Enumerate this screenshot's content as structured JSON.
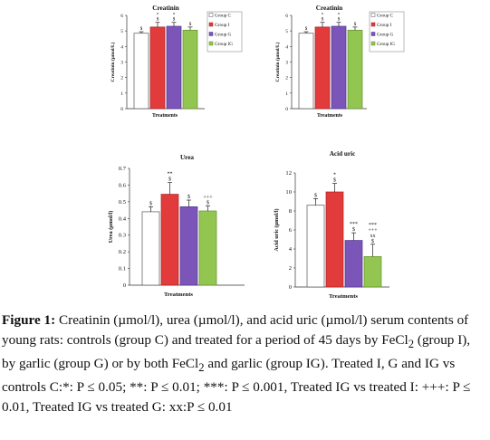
{
  "colors": {
    "group_c": "#ffffff",
    "group_i": "#e23b3b",
    "group_g": "#7b56b8",
    "group_ig": "#93c650"
  },
  "chart_data": [
    {
      "type": "bar",
      "title": "Creatinin",
      "xlabel": "Treatments",
      "ylabel": "Creatinin (µmol/L)",
      "ylim": [
        0,
        6
      ],
      "yticks": [
        "0",
        "1",
        "2",
        "3",
        "4",
        "5",
        "6"
      ],
      "legend": [
        "Group C",
        "Group I",
        "Group G",
        "Group IG"
      ],
      "legend_position": "right",
      "values": [
        4.85,
        5.25,
        5.3,
        5.05
      ],
      "errors": [
        0.1,
        0.3,
        0.25,
        0.2
      ],
      "marks": [
        "$",
        "*\n$",
        "*\n$",
        "$"
      ]
    },
    {
      "type": "bar",
      "title": "Creatinin",
      "xlabel": "Treatments",
      "ylabel": "Creatinin (µmol/L)",
      "ylim": [
        0,
        6
      ],
      "yticks": [
        "0",
        "1",
        "2",
        "3",
        "4",
        "5",
        "6"
      ],
      "legend": [
        "Group C",
        "Group I",
        "Group G",
        "Group IG"
      ],
      "legend_position": "right",
      "values": [
        4.85,
        5.25,
        5.3,
        5.05
      ],
      "errors": [
        0.1,
        0.3,
        0.25,
        0.2
      ],
      "marks": [
        "$",
        "*\n$",
        "*\n$",
        "$"
      ]
    },
    {
      "type": "bar",
      "title": "Urea",
      "xlabel": "Treatments",
      "ylabel": "Urea (µmol/l)",
      "ylim": [
        0,
        0.7
      ],
      "yticks": [
        "0",
        "0.1",
        "0.2",
        "0.3",
        "0.4",
        "0.5",
        "0.6",
        "0.7"
      ],
      "values": [
        0.44,
        0.545,
        0.47,
        0.445
      ],
      "errors": [
        0.03,
        0.07,
        0.04,
        0.03
      ],
      "marks": [
        "$",
        "**\n$",
        "$",
        "+++\n$"
      ]
    },
    {
      "type": "bar",
      "title": "Acid  uric",
      "xlabel": "Treatments",
      "ylabel": "Acid uric (µmol/l)",
      "ylim": [
        0,
        12
      ],
      "yticks": [
        "0",
        "2",
        "4",
        "6",
        "8",
        "10",
        "12"
      ],
      "values": [
        8.6,
        10.0,
        4.9,
        3.2
      ],
      "errors": [
        0.7,
        0.9,
        0.8,
        1.3
      ],
      "marks": [
        "$",
        "*\n$",
        "***\n$",
        "***\n+++\nxx\n$"
      ]
    }
  ],
  "caption": {
    "label": "Figure 1:",
    "body": " Creatinin (µmol/l), urea (µmol/l), and acid uric (µmol/l) serum contents of young rats: controls (group C) and treated for a period of 45 days by FeCl",
    "sub1": "2",
    "body2": " (group I), by garlic (group G) or by both FeCl",
    "sub2": "2",
    "body3": " and garlic (group IG). Treated I, G and IG vs controls C:*: P ≤ 0.05; **: P ≤ 0.01; ***: P ≤ 0.001, Treated IG vs treated I: +++: P ≤ 0.01, Treated IG vs treated G: xx:P ≤ 0.01"
  }
}
